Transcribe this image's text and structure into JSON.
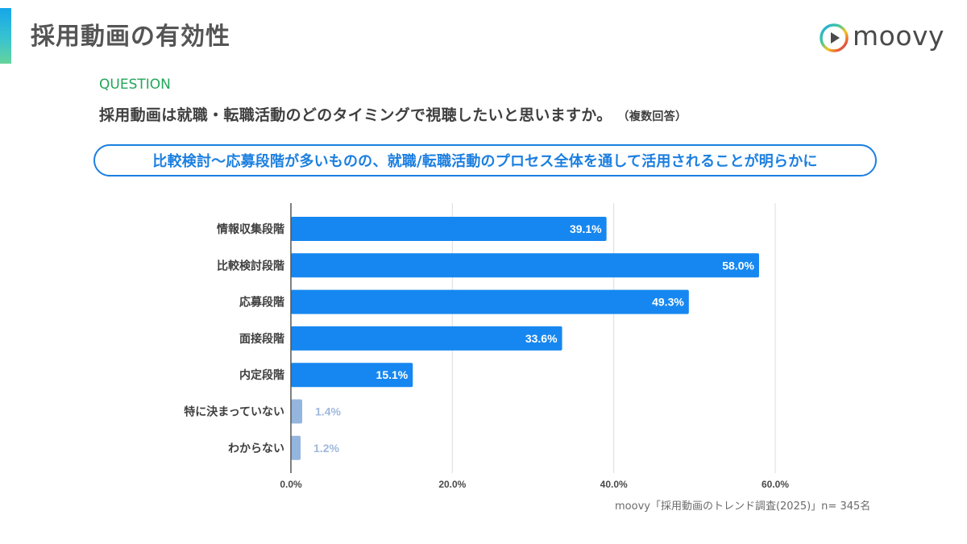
{
  "header": {
    "title": "採用動画の有効性",
    "logo_text": "moovy",
    "accent_colors": [
      "#16a6ea",
      "#64d49c"
    ]
  },
  "question": {
    "label": "QUESTION",
    "text": "採用動画は就職・転職活動のどのタイミングで視聴したいと思いますか。",
    "note": "（複数回答）"
  },
  "summary": {
    "text": "比較検討〜応募段階が多いものの、就職/転職活動のプロセス全体を通して活用されることが明らかに"
  },
  "colors": {
    "primary_bar": "#1687f0",
    "secondary_bar": "#94b5dd",
    "question_label": "#22a55a",
    "summary": "#1b7fe0"
  },
  "chart_data": {
    "type": "bar",
    "orientation": "horizontal",
    "title": "",
    "xlabel": "",
    "ylabel": "",
    "categories": [
      "情報収集段階",
      "比較検討段階",
      "応募段階",
      "面接段階",
      "内定段階",
      "特に決まっていない",
      "わからない"
    ],
    "values": [
      39.1,
      58.0,
      49.3,
      33.6,
      15.1,
      1.4,
      1.2
    ],
    "value_labels": [
      "39.1%",
      "58.0%",
      "49.3%",
      "33.6%",
      "15.1%",
      "1.4%",
      "1.2%"
    ],
    "highlight": [
      true,
      true,
      true,
      true,
      true,
      false,
      false
    ],
    "xlim": [
      0,
      60
    ],
    "x_ticks": [
      0,
      20,
      40,
      60
    ],
    "x_tick_labels": [
      "0.0%",
      "20.0%",
      "40.0%",
      "60.0%"
    ],
    "grid": "vertical",
    "legend": "none"
  },
  "footer": {
    "source": "moovy「採用動画のトレンド調査(2025)」n= 345名"
  }
}
